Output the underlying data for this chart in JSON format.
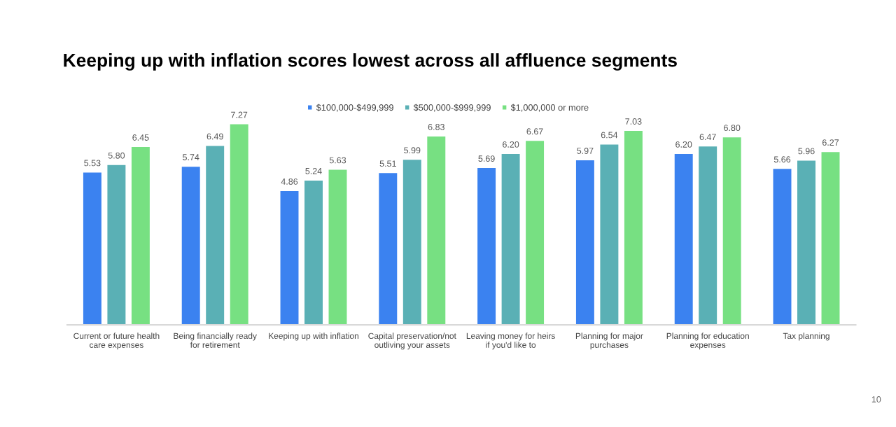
{
  "chart_data": {
    "type": "bar",
    "title": "Keeping up with inflation scores lowest across all affluence segments",
    "categories": [
      "Current or future health\ncare expenses",
      "Being financially ready\nfor retirement",
      "Keeping up with inflation",
      "Capital preservation/not\noutliving your assets",
      "Leaving money for heirs\nif you'd like to",
      "Planning for major\npurchases",
      "Planning for education\nexpenses",
      "Tax planning"
    ],
    "series": [
      {
        "name": "$100,000-$499,999",
        "color": "#3b82f0",
        "values": [
          5.53,
          5.74,
          4.86,
          5.51,
          5.69,
          5.97,
          6.2,
          5.66
        ],
        "value_labels": [
          "5.53",
          "5.74",
          "4.86",
          "5.51",
          "5.69",
          "5.97",
          "6.20",
          "5.66"
        ]
      },
      {
        "name": "$500,000-$999,999",
        "color": "#5ab0b5",
        "values": [
          5.8,
          6.49,
          5.24,
          5.99,
          6.2,
          6.54,
          6.47,
          5.96
        ],
        "value_labels": [
          "5.80",
          "6.49",
          "5.24",
          "5.99",
          "6.20",
          "6.54",
          "6.47",
          "5.96"
        ]
      },
      {
        "name": "$1,000,000 or more",
        "color": "#77e082",
        "values": [
          6.45,
          7.27,
          5.63,
          6.83,
          6.67,
          7.03,
          6.8,
          6.27
        ],
        "value_labels": [
          "6.45",
          "7.27",
          "5.63",
          "6.83",
          "6.67",
          "7.03",
          "6.80",
          "6.27"
        ]
      }
    ],
    "tick_labels": "x",
    "legend": "top",
    "annotations": [
      "10"
    ]
  }
}
